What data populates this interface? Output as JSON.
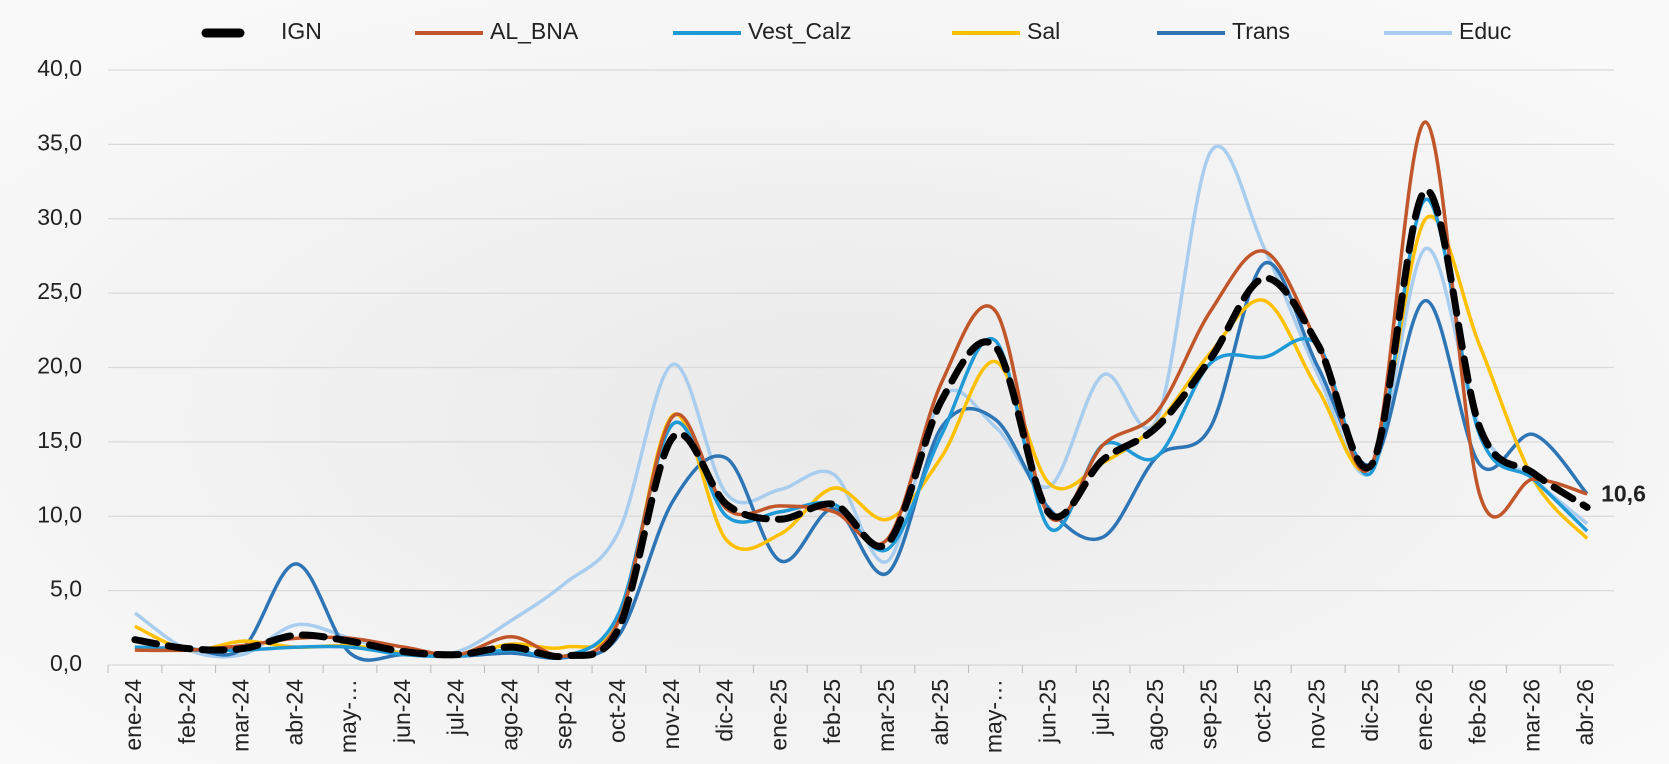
{
  "chart_data": {
    "type": "line",
    "categories": [
      "ene-24",
      "feb-24",
      "mar-24",
      "abr-24",
      "may-…",
      "jun-24",
      "jul-24",
      "ago-24",
      "sep-24",
      "oct-24",
      "nov-24",
      "dic-24",
      "ene-25",
      "feb-25",
      "mar-25",
      "abr-25",
      "may-…",
      "jun-25",
      "jul-25",
      "ago-25",
      "sep-25",
      "oct-25",
      "nov-25",
      "dic-25",
      "ene-26",
      "feb-26",
      "mar-26",
      "abr-26"
    ],
    "series": [
      {
        "name": "IGN",
        "color": "#000000",
        "dashed": true,
        "values": [
          1.7,
          1.1,
          1.1,
          2.0,
          1.6,
          0.9,
          0.7,
          1.2,
          0.6,
          2.5,
          15.3,
          10.8,
          9.8,
          10.8,
          8.2,
          17.8,
          21.4,
          10.2,
          13.8,
          16.0,
          20.6,
          26.0,
          21.5,
          13.5,
          31.9,
          16.0,
          12.9,
          10.6
        ],
        "value_labels": [
          null,
          null,
          null,
          null,
          null,
          null,
          null,
          null,
          null,
          null,
          null,
          null,
          null,
          null,
          null,
          null,
          null,
          null,
          null,
          null,
          null,
          null,
          null,
          null,
          null,
          null,
          null,
          "10,6"
        ]
      },
      {
        "name": "AL_BNA",
        "color": "#c0562a",
        "values": [
          1.0,
          1.0,
          1.3,
          1.8,
          1.8,
          1.2,
          0.7,
          1.9,
          0.6,
          3.0,
          16.7,
          10.5,
          10.7,
          10.3,
          8.5,
          19.0,
          23.8,
          10.0,
          14.8,
          17.0,
          23.8,
          27.8,
          21.5,
          13.5,
          36.5,
          11.5,
          12.5,
          11.5
        ]
      },
      {
        "name": "Vest_Calz",
        "color": "#1f9ad6",
        "values": [
          1.2,
          1.0,
          1.0,
          1.2,
          1.2,
          0.7,
          0.6,
          1.0,
          0.6,
          3.5,
          16.2,
          10.0,
          10.3,
          10.8,
          7.8,
          15.5,
          21.8,
          9.2,
          14.8,
          14.0,
          20.3,
          20.7,
          21.5,
          13.0,
          31.3,
          15.5,
          12.5,
          9.0
        ]
      },
      {
        "name": "Sal",
        "color": "#ffc000",
        "values": [
          2.6,
          1.0,
          1.6,
          1.2,
          1.3,
          0.8,
          0.6,
          1.4,
          1.2,
          3.0,
          16.8,
          8.4,
          8.8,
          11.9,
          9.8,
          14.0,
          20.4,
          12.2,
          13.6,
          16.2,
          21.0,
          24.5,
          18.5,
          13.5,
          30.0,
          21.5,
          12.5,
          8.5
        ]
      },
      {
        "name": "Trans",
        "color": "#2e75b6",
        "values": [
          1.2,
          1.1,
          1.1,
          6.8,
          0.8,
          0.7,
          0.6,
          0.8,
          0.5,
          2.0,
          11.0,
          13.9,
          7.0,
          10.5,
          6.2,
          16.0,
          16.5,
          10.5,
          8.6,
          14.0,
          16.0,
          27.0,
          20.0,
          13.5,
          24.5,
          13.5,
          15.5,
          11.5
        ]
      },
      {
        "name": "Educ",
        "color": "#a9cdee",
        "values": [
          3.5,
          1.0,
          0.7,
          2.7,
          1.8,
          0.8,
          0.9,
          3.0,
          5.5,
          9.0,
          20.2,
          11.5,
          11.8,
          12.8,
          7.0,
          18.0,
          16.0,
          12.0,
          19.5,
          16.5,
          34.5,
          28.0,
          19.5,
          13.0,
          28.0,
          16.0,
          12.5,
          9.5
        ]
      }
    ],
    "ylim": [
      0,
      40
    ],
    "yticks": [
      {
        "value": 0,
        "label": "0,0"
      },
      {
        "value": 5,
        "label": "5,0"
      },
      {
        "value": 10,
        "label": "10,0"
      },
      {
        "value": 15,
        "label": "15,0"
      },
      {
        "value": 20,
        "label": "20,0"
      },
      {
        "value": 25,
        "label": "25,0"
      },
      {
        "value": 30,
        "label": "30,0"
      },
      {
        "value": 35,
        "label": "35,0"
      },
      {
        "value": 40,
        "label": "40,0"
      }
    ],
    "grid": true,
    "legend": "top"
  }
}
